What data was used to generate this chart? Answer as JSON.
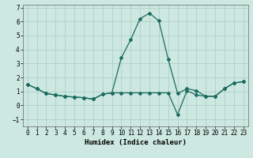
{
  "xlabel": "Humidex (Indice chaleur)",
  "background_color": "#cce8e0",
  "grid_color": "#aaccc4",
  "line_color": "#1a6b60",
  "xlim": [
    -0.5,
    23.5
  ],
  "ylim": [
    -1.5,
    7.2
  ],
  "xticks": [
    0,
    1,
    2,
    3,
    4,
    5,
    6,
    7,
    8,
    9,
    10,
    11,
    12,
    13,
    14,
    15,
    16,
    17,
    18,
    19,
    20,
    21,
    22,
    23
  ],
  "yticks": [
    -1,
    0,
    1,
    2,
    3,
    4,
    5,
    6,
    7
  ],
  "series1_x": [
    0,
    1,
    2,
    3,
    4,
    5,
    6,
    7,
    8,
    9,
    10,
    11,
    12,
    13,
    14,
    15,
    16,
    17,
    18,
    19,
    20,
    21,
    22,
    23
  ],
  "series1_y": [
    1.5,
    1.2,
    0.85,
    0.75,
    0.65,
    0.6,
    0.55,
    0.45,
    0.8,
    0.9,
    3.4,
    4.7,
    6.2,
    6.6,
    6.05,
    3.3,
    0.85,
    1.2,
    1.05,
    0.65,
    0.65,
    1.2,
    1.6,
    1.7
  ],
  "series2_x": [
    0,
    1,
    2,
    3,
    4,
    5,
    6,
    7,
    8,
    9,
    10,
    11,
    12,
    13,
    14,
    15,
    16,
    17,
    18,
    19,
    20,
    21,
    22,
    23
  ],
  "series2_y": [
    1.5,
    1.2,
    0.85,
    0.75,
    0.65,
    0.6,
    0.55,
    0.45,
    0.8,
    0.9,
    0.9,
    0.9,
    0.9,
    0.9,
    0.9,
    0.9,
    -0.65,
    1.05,
    0.75,
    0.65,
    0.65,
    1.2,
    1.6,
    1.7
  ],
  "marker": "D",
  "marker_size": 2.0,
  "linewidth": 0.9,
  "fontsize_label": 6.5,
  "fontsize_tick": 5.5
}
